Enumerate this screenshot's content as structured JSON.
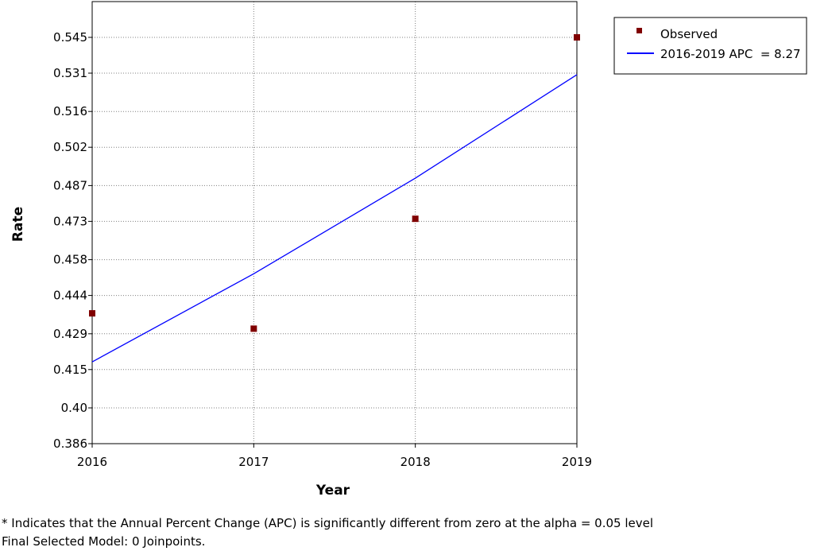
{
  "chart_data": {
    "type": "scatter",
    "xlabel": "Year",
    "ylabel": "Rate",
    "xlim": [
      2016,
      2019
    ],
    "ylim": [
      0.386,
      0.559
    ],
    "x_ticks": [
      "2016",
      "2017",
      "2018",
      "2019"
    ],
    "y_ticks": [
      "0.386",
      "0.40",
      "0.415",
      "0.429",
      "0.444",
      "0.458",
      "0.473",
      "0.487",
      "0.502",
      "0.516",
      "0.531",
      "0.545"
    ],
    "y_tick_values": [
      0.386,
      0.4,
      0.415,
      0.429,
      0.444,
      0.458,
      0.473,
      0.487,
      0.502,
      0.516,
      0.531,
      0.545
    ],
    "grid": true,
    "legend_position": "top-right",
    "series": [
      {
        "name": "Observed",
        "kind": "points",
        "color": "#800000",
        "x": [
          2016,
          2017,
          2018,
          2019
        ],
        "y": [
          0.437,
          0.431,
          0.474,
          0.545
        ]
      },
      {
        "name": "2016-2019 APC  = 8.27",
        "kind": "line",
        "color": "#0000ff",
        "x": [
          2016,
          2017,
          2018,
          2019
        ],
        "y": [
          0.418,
          0.4525,
          0.4899,
          0.5304
        ]
      }
    ]
  },
  "footnotes": [
    "* Indicates that the Annual Percent Change (APC) is significantly different from zero at the alpha = 0.05 level",
    "Final Selected Model: 0 Joinpoints."
  ]
}
